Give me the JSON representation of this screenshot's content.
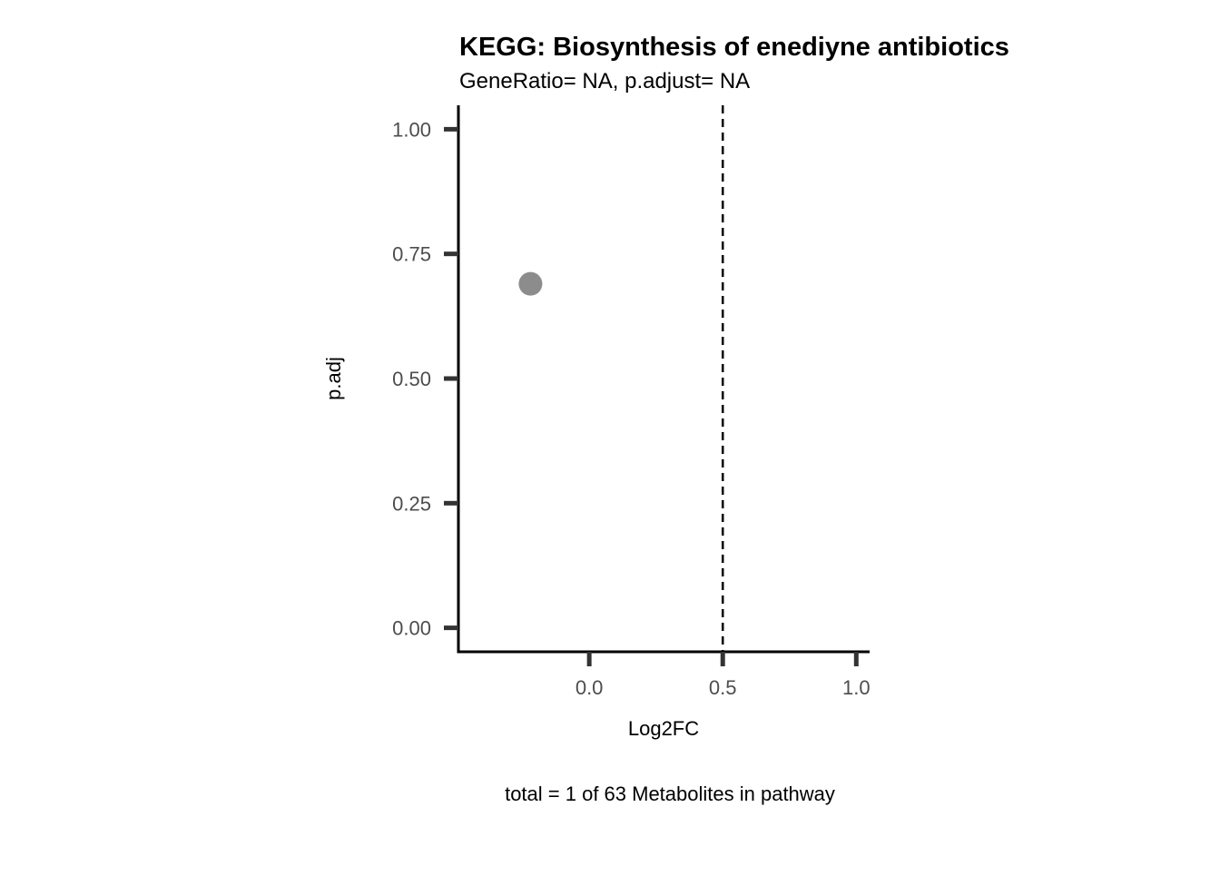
{
  "chart_data": {
    "type": "scatter",
    "title": "KEGG: Biosynthesis of enediyne antibiotics",
    "subtitle": "GeneRatio= NA, p.adjust= NA",
    "xlabel": "Log2FC",
    "ylabel": "p.adj",
    "caption": "total = 1 of 63 Metabolites in pathway",
    "xlim": [
      -0.49,
      1.05
    ],
    "ylim": [
      -0.048,
      1.048
    ],
    "x_ticks": [
      0.0,
      0.5,
      1.0
    ],
    "x_tick_labels": [
      "0.0",
      "0.5",
      "1.0"
    ],
    "y_ticks": [
      0.0,
      0.25,
      0.5,
      0.75,
      1.0
    ],
    "y_tick_labels": [
      "0.00",
      "0.25",
      "0.50",
      "0.75",
      "1.00"
    ],
    "grid": false,
    "reference_line": {
      "axis": "x",
      "value": 0.5,
      "style": "dashed"
    },
    "series": [
      {
        "color": "#8c8c8c",
        "points": [
          {
            "x": -0.22,
            "y": 0.69
          }
        ]
      }
    ]
  }
}
